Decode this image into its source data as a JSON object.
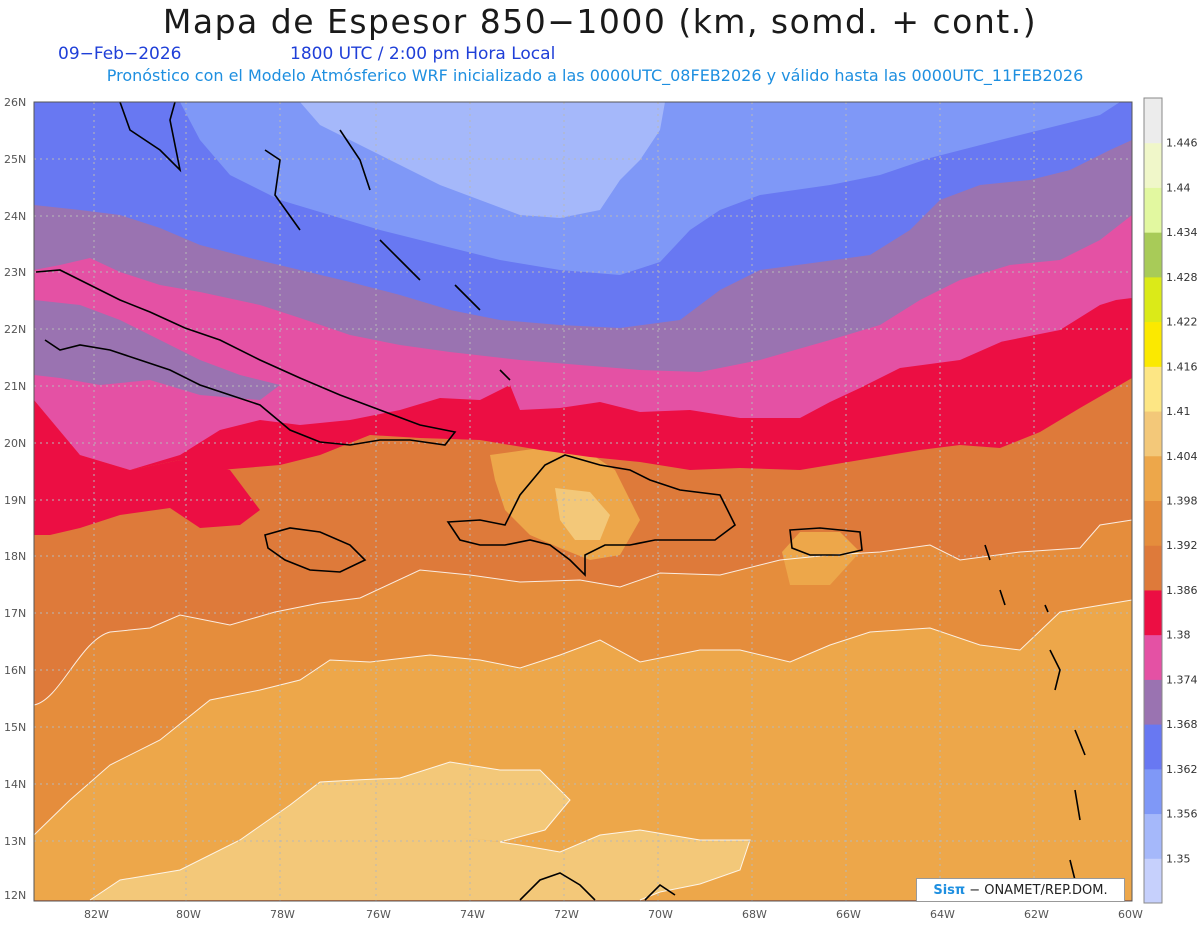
{
  "title": "Mapa de Espesor 850−1000 (km, somd. + cont.)",
  "date": "09−Feb−2026",
  "time": "1800 UTC / 2:00 pm Hora Local",
  "subtitle": "Pronóstico con el Modelo Atmósferico WRF inicializado a las 0000UTC_08FEB2026 y válido hasta las  0000UTC_11FEB2026",
  "credit": {
    "brand": "Sisπ",
    "text": "− ONAMET/REP.DOM."
  },
  "map": {
    "lon_range": [
      -83.0,
      -60.0
    ],
    "lat_range": [
      12.0,
      26.0
    ],
    "x_ticks": [
      "82W",
      "80W",
      "78W",
      "76W",
      "74W",
      "72W",
      "70W",
      "68W",
      "66W",
      "64W",
      "62W",
      "60W"
    ],
    "y_ticks": [
      "12N",
      "13N",
      "14N",
      "15N",
      "16N",
      "17N",
      "18N",
      "19N",
      "20N",
      "21N",
      "22N",
      "23N",
      "24N",
      "25N",
      "26N"
    ],
    "grid": true
  },
  "colorbar": {
    "labels": [
      "1.35",
      "1.356",
      "1.362",
      "1.368",
      "1.374",
      "1.38",
      "1.386",
      "1.392",
      "1.398",
      "1.404",
      "1.41",
      "1.416",
      "1.422",
      "1.428",
      "1.434",
      "1.44",
      "1.446"
    ],
    "colors": [
      "#c6d0fc",
      "#a5b8fa",
      "#7f98f7",
      "#6878f2",
      "#9a73b1",
      "#e451a4",
      "#ec0e43",
      "#de7a3a",
      "#e58d3c",
      "#eda74a",
      "#f3c879",
      "#fde684",
      "#fbe900",
      "#dbea18",
      "#a8cb58",
      "#e2f8a0",
      "#f0f7c9",
      "#ececec"
    ]
  }
}
